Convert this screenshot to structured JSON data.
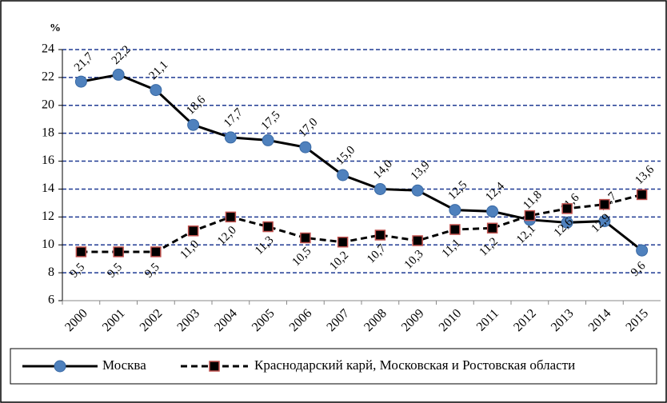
{
  "chart_data": {
    "type": "line",
    "y_label": "%",
    "categories": [
      "2000",
      "2001",
      "2002",
      "2003",
      "2004",
      "2005",
      "2006",
      "2007",
      "2008",
      "2009",
      "2010",
      "2011",
      "2012",
      "2013",
      "2014",
      "2015"
    ],
    "series": [
      {
        "name": "Москва",
        "color": "#4f81bd",
        "line_color": "#000000",
        "marker": "circle",
        "values": [
          21.7,
          22.2,
          21.1,
          18.6,
          17.7,
          17.5,
          17.0,
          15.0,
          14.0,
          13.9,
          12.5,
          12.4,
          11.8,
          11.6,
          11.7,
          9.6
        ],
        "value_labels": [
          "21,7",
          "22,2",
          "21,1",
          "18,6",
          "17,7",
          "17,5",
          "17,0",
          "15,0",
          "14,0",
          "13,9",
          "12,5",
          "12,4",
          "11,8",
          "11,6",
          "11,7",
          "9,6"
        ]
      },
      {
        "name": "Краснодарский карй, Московская и Ростовская области",
        "color": "#000000",
        "line_color": "#000000",
        "marker_edge": "#c0504d",
        "marker": "square",
        "dashed": true,
        "values": [
          9.5,
          9.5,
          9.5,
          11.0,
          12.0,
          11.3,
          10.5,
          10.2,
          10.7,
          10.3,
          11.1,
          11.2,
          12.1,
          12.6,
          12.9,
          13.6
        ],
        "value_labels": [
          "9,5",
          "9,5",
          "9,5",
          "11,0",
          "12,0",
          "11,3",
          "10,5",
          "10,2",
          "10,7",
          "10,3",
          "11,1",
          "11,2",
          "12,1",
          "12,6",
          "12,9",
          "13,6"
        ]
      }
    ],
    "ylim": [
      6,
      24
    ],
    "yticks": [
      6,
      8,
      10,
      12,
      14,
      16,
      18,
      20,
      22,
      24
    ],
    "grid": true,
    "grid_color": "#1f3a93",
    "legend": "bottom"
  }
}
